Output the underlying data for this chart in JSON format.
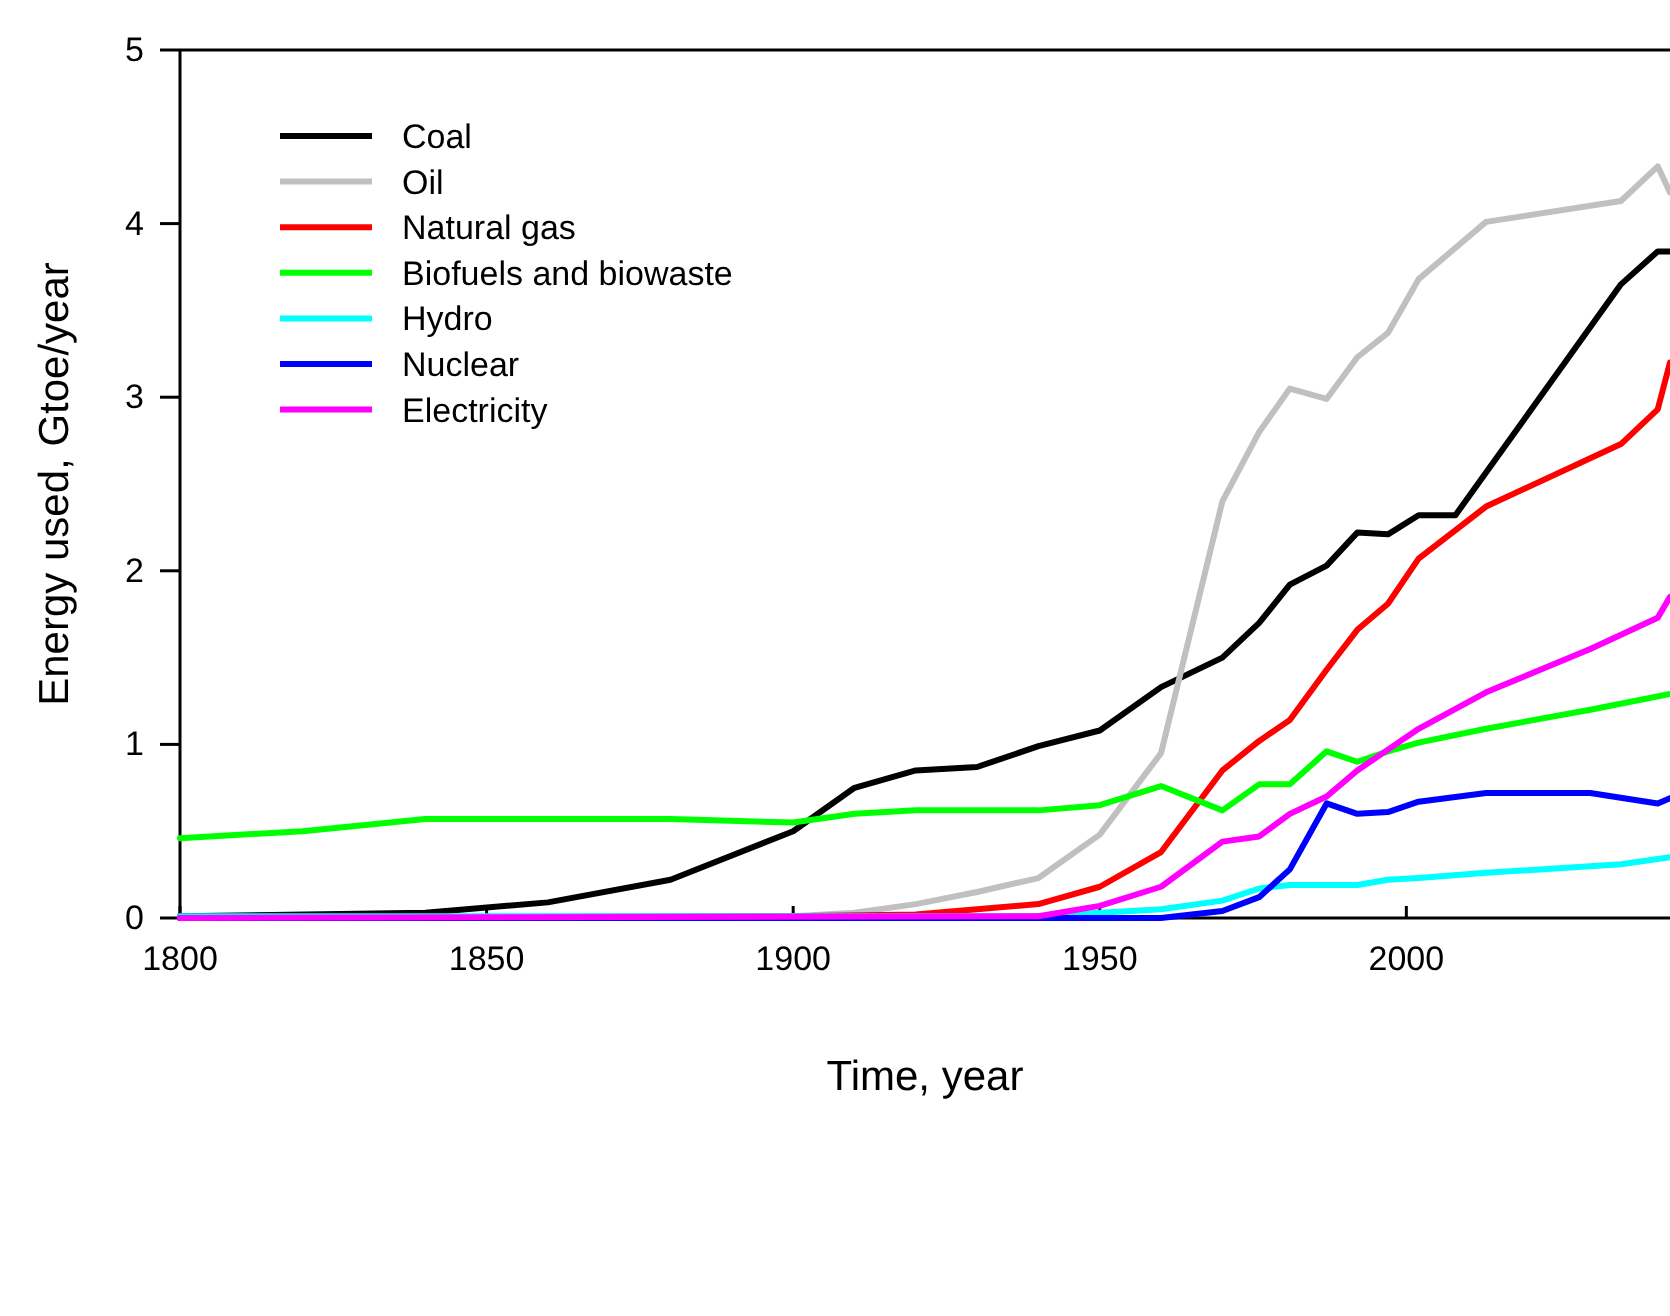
{
  "chart_data": {
    "type": "line",
    "xlabel": "Time, year",
    "ylabel": "Energy used, Gtoe/year",
    "xlim": [
      1800,
      2043
    ],
    "xticks": [
      1800,
      1850,
      1900,
      1950,
      2000
    ],
    "ylim": [
      0,
      5
    ],
    "yticks": [
      0,
      1,
      2,
      3,
      4,
      5
    ],
    "grid": false,
    "legend": "top left",
    "marker": "none",
    "line_style": "solid",
    "series": [
      {
        "name": "Coal",
        "color": "#000000",
        "x": [
          1800,
          1840,
          1860,
          1880,
          1900,
          1910,
          1920,
          1930,
          1940,
          1950,
          1960,
          1970,
          1976,
          1981,
          1987,
          1992,
          1997,
          2002,
          2008,
          2035,
          2041,
          2043
        ],
        "values": [
          0.01,
          0.03,
          0.09,
          0.22,
          0.5,
          0.75,
          0.85,
          0.87,
          0.99,
          1.08,
          1.33,
          1.5,
          1.7,
          1.92,
          2.03,
          2.22,
          2.21,
          2.32,
          2.32,
          3.65,
          3.84,
          3.84
        ]
      },
      {
        "name": "Oil",
        "color": "#c0c0c0",
        "x": [
          1800,
          1900,
          1910,
          1920,
          1930,
          1940,
          1950,
          1960,
          1970,
          1976,
          1981,
          1987,
          1992,
          1997,
          2002,
          2013,
          2035,
          2041,
          2043
        ],
        "values": [
          0,
          0.01,
          0.03,
          0.08,
          0.15,
          0.23,
          0.48,
          0.95,
          2.4,
          2.8,
          3.05,
          2.99,
          3.23,
          3.37,
          3.68,
          4.01,
          4.13,
          4.33,
          4.18
        ]
      },
      {
        "name": "Natural gas",
        "color": "#ff0000",
        "x": [
          1800,
          1900,
          1920,
          1930,
          1940,
          1950,
          1960,
          1970,
          1976,
          1981,
          1987,
          1992,
          1997,
          2002,
          2013,
          2035,
          2041,
          2043
        ],
        "values": [
          0,
          0.01,
          0.02,
          0.05,
          0.08,
          0.18,
          0.38,
          0.85,
          1.02,
          1.14,
          1.43,
          1.66,
          1.81,
          2.07,
          2.37,
          2.73,
          2.93,
          3.2
        ]
      },
      {
        "name": "Biofuels and biowaste",
        "color": "#00ff00",
        "x": [
          1800,
          1820,
          1840,
          1860,
          1880,
          1900,
          1910,
          1920,
          1940,
          1950,
          1960,
          1970,
          1976,
          1981,
          1987,
          1992,
          1997,
          2002,
          2013,
          2030,
          2043
        ],
        "values": [
          0.46,
          0.5,
          0.57,
          0.57,
          0.57,
          0.55,
          0.6,
          0.62,
          0.62,
          0.65,
          0.76,
          0.62,
          0.77,
          0.77,
          0.96,
          0.9,
          0.96,
          1.01,
          1.09,
          1.2,
          1.29
        ]
      },
      {
        "name": "Hydro",
        "color": "#00ffff",
        "x": [
          1800,
          1940,
          1950,
          1960,
          1970,
          1976,
          1981,
          1992,
          1997,
          2002,
          2013,
          2035,
          2043
        ],
        "values": [
          0.01,
          0.01,
          0.03,
          0.05,
          0.1,
          0.17,
          0.19,
          0.19,
          0.22,
          0.23,
          0.26,
          0.31,
          0.35
        ]
      },
      {
        "name": "Nuclear",
        "color": "#0000ff",
        "x": [
          1800,
          1960,
          1970,
          1976,
          1981,
          1987,
          1992,
          1997,
          2002,
          2013,
          2030,
          2041,
          2043
        ],
        "values": [
          0,
          0,
          0.04,
          0.12,
          0.28,
          0.66,
          0.6,
          0.61,
          0.67,
          0.72,
          0.72,
          0.66,
          0.69
        ]
      },
      {
        "name": "Electricity",
        "color": "#ff00ff",
        "x": [
          1800,
          1940,
          1950,
          1960,
          1970,
          1976,
          1981,
          1987,
          1992,
          1997,
          2002,
          2013,
          2030,
          2041,
          2043
        ],
        "values": [
          0,
          0.01,
          0.07,
          0.18,
          0.44,
          0.47,
          0.6,
          0.7,
          0.85,
          0.97,
          1.09,
          1.3,
          1.55,
          1.73,
          1.85
        ]
      }
    ]
  }
}
